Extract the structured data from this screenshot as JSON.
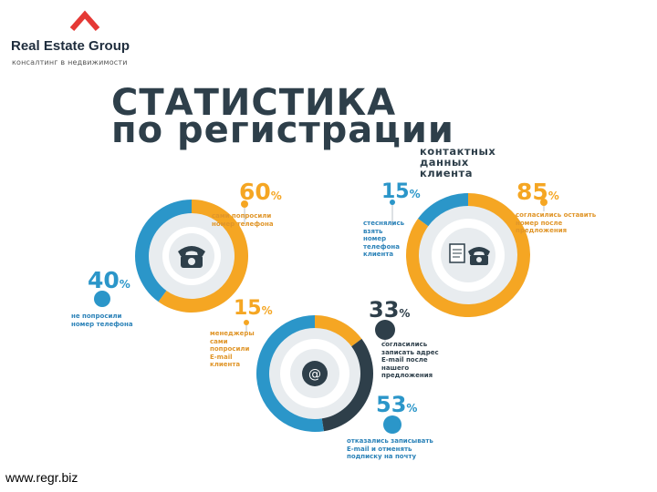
{
  "logo": {
    "name": "Real Estate Group",
    "tagline": "консалтинг в недвижимости",
    "mark_color": "#e53935"
  },
  "title": {
    "line1": "СТАТИСТИКА",
    "line2": "по регистрации"
  },
  "subtitle": [
    "контактных",
    "данных",
    "клиента"
  ],
  "colors": {
    "orange": "#f5a623",
    "blue": "#2b96c9",
    "dark": "#2e3f4a",
    "light": "#e8ecef"
  },
  "charts": [
    {
      "icon": "phone-icon",
      "segments": [
        {
          "value": 60,
          "label": [
            "сами попросили",
            "номер телефона"
          ],
          "color": "orange"
        },
        {
          "value": 40,
          "label": [
            "не попросили",
            "номер телефона"
          ],
          "color": "blue"
        }
      ]
    },
    {
      "icon": "phone-document-icon",
      "segments": [
        {
          "value": 15,
          "label": [
            "стеснялись",
            "взять",
            "номер",
            "телефона",
            "клиента"
          ],
          "color": "blue"
        },
        {
          "value": 85,
          "label": [
            "согласились оставить",
            "номер после",
            "предложения"
          ],
          "color": "orange"
        }
      ]
    },
    {
      "icon": "email-at-icon",
      "segments": [
        {
          "value": 15,
          "label": [
            "менеджеры",
            "сами",
            "попросили",
            "E-mail",
            "клиента"
          ],
          "color": "orange"
        },
        {
          "value": 33,
          "label": [
            "согласились",
            "записать адрес",
            "E-mail после",
            "нашего",
            "предложения"
          ],
          "color": "dark"
        },
        {
          "value": 53,
          "label": [
            "отказались записывать",
            "E-mail и отменять",
            "подписку на почту"
          ],
          "color": "blue"
        }
      ]
    }
  ],
  "footer": "www.regr.biz"
}
